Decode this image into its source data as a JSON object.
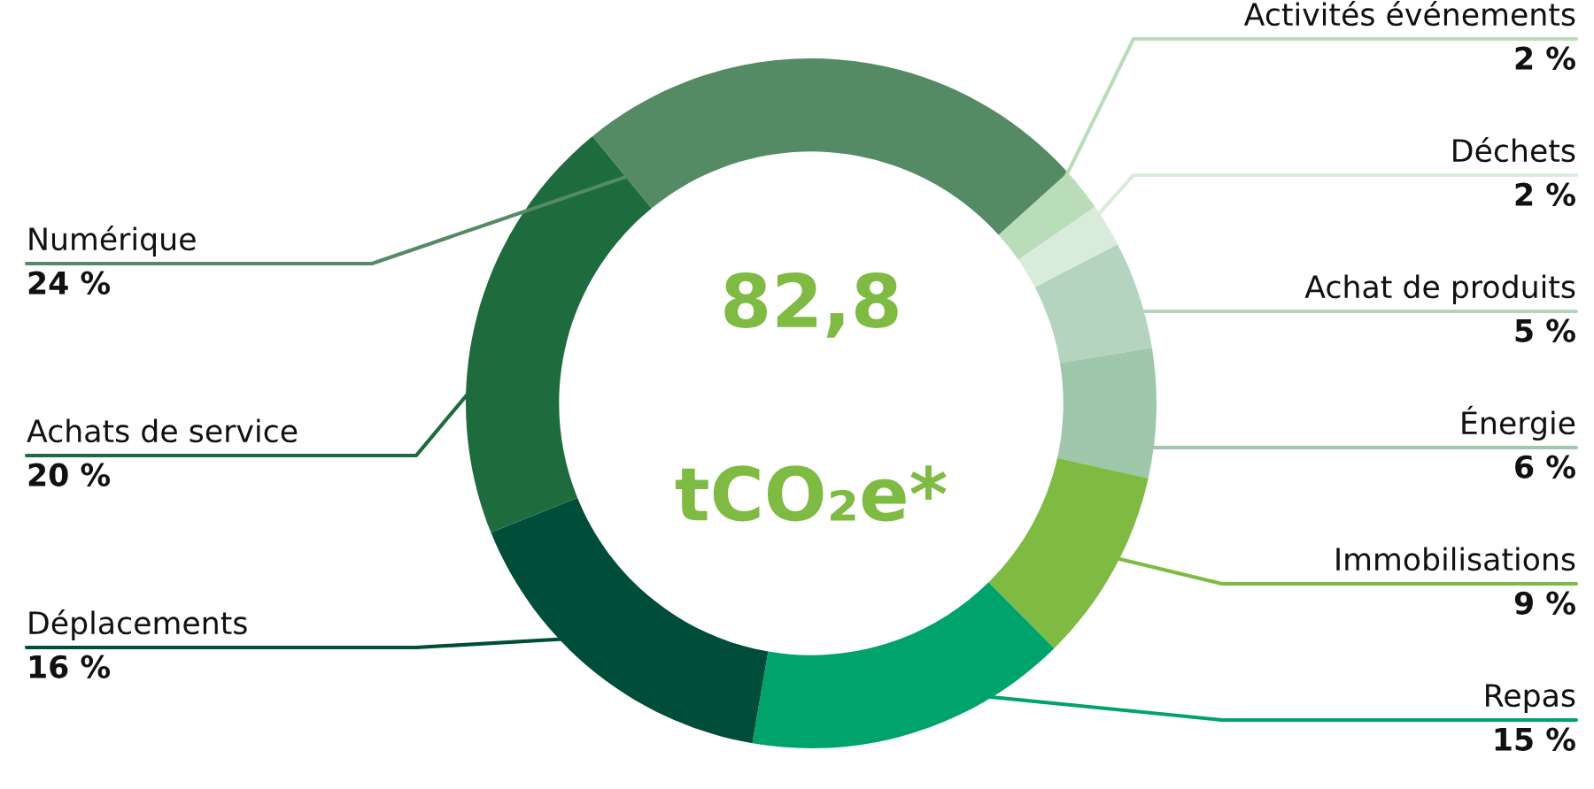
{
  "chart_data": {
    "type": "donut",
    "categories": [
      "Activités événements",
      "Déchets",
      "Achat de produits",
      "Énergie",
      "Immobilisations",
      "Repas",
      "Déplacements",
      "Achats de service",
      "Numérique"
    ],
    "values": [
      2,
      2,
      5,
      6,
      9,
      15,
      16,
      20,
      24
    ],
    "value_labels": [
      "2 %",
      "2 %",
      "5 %",
      "6 %",
      "9 %",
      "15 %",
      "16 %",
      "20 %",
      "24 %"
    ],
    "colors": [
      "#b9dcb9",
      "#d9ecdc",
      "#b5d4c0",
      "#9fc7ac",
      "#7fba42",
      "#00a36c",
      "#004d3a",
      "#1e6b3e",
      "#548a64"
    ],
    "annotations": [
      "82,8",
      "tCO₂e*"
    ],
    "legend": false
  }
}
